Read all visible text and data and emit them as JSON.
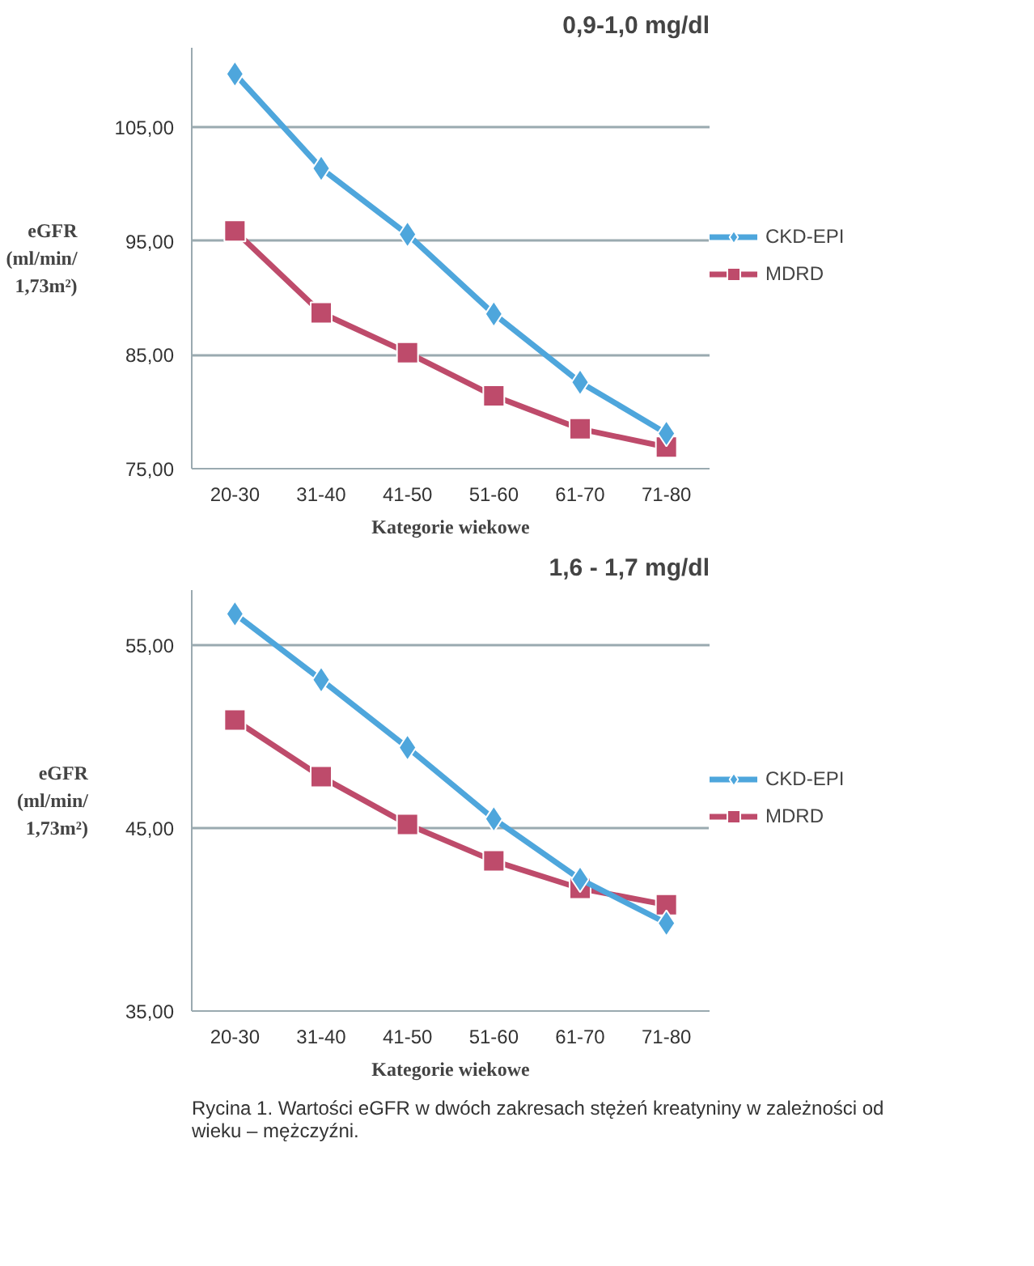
{
  "chart_data": [
    {
      "type": "line",
      "title": "0,9-1,0 mg/dl",
      "xlabel": "Kategorie wiekowe",
      "ylabel": "eGFR\n(ml/min/\n1,73m²)",
      "categories": [
        "20-30",
        "31-40",
        "41-50",
        "51-60",
        "61-70",
        "71-80"
      ],
      "series": [
        {
          "name": "CKD-EPI",
          "color": "#4ea6dc",
          "marker": "diamond",
          "values": [
            109.7,
            101.4,
            95.6,
            88.6,
            82.6,
            78.1
          ]
        },
        {
          "name": "MDRD",
          "color": "#be4b6b",
          "marker": "square",
          "values": [
            95.9,
            88.7,
            85.2,
            81.4,
            78.5,
            76.9
          ]
        }
      ],
      "ylim": [
        75,
        112
      ],
      "yticks": [
        {
          "value": 75,
          "label": "75,00"
        },
        {
          "value": 85,
          "label": "85,00"
        },
        {
          "value": 95,
          "label": "95,00"
        },
        {
          "value": 105,
          "label": "105,00"
        }
      ],
      "grid": "y",
      "legend": "right",
      "line_style": "solid"
    },
    {
      "type": "line",
      "title": "1,6 - 1,7 mg/dl",
      "xlabel": "Kategorie wiekowe",
      "ylabel": "eGFR\n(ml/min/\n1,73m²)",
      "categories": [
        "20-30",
        "31-40",
        "41-50",
        "51-60",
        "61-70",
        "71-80"
      ],
      "series": [
        {
          "name": "CKD-EPI",
          "color": "#4ea6dc",
          "marker": "diamond",
          "values": [
            56.7,
            53.1,
            49.4,
            45.5,
            42.2,
            39.8
          ]
        },
        {
          "name": "MDRD",
          "color": "#be4b6b",
          "marker": "square",
          "values": [
            50.9,
            47.8,
            45.2,
            43.2,
            41.7,
            40.8
          ]
        }
      ],
      "ylim": [
        35,
        58
      ],
      "yticks": [
        {
          "value": 35,
          "label": "35,00"
        },
        {
          "value": 45,
          "label": "45,00"
        },
        {
          "value": 55,
          "label": "55,00"
        }
      ],
      "grid": "y",
      "legend": "right",
      "line_style": "solid",
      "annotations": [
        "Rycina 1. Wartości eGFR w dwóch zakresach stężeń kreatyniny w zależności od\nwieku – mężczyźni."
      ]
    }
  ]
}
